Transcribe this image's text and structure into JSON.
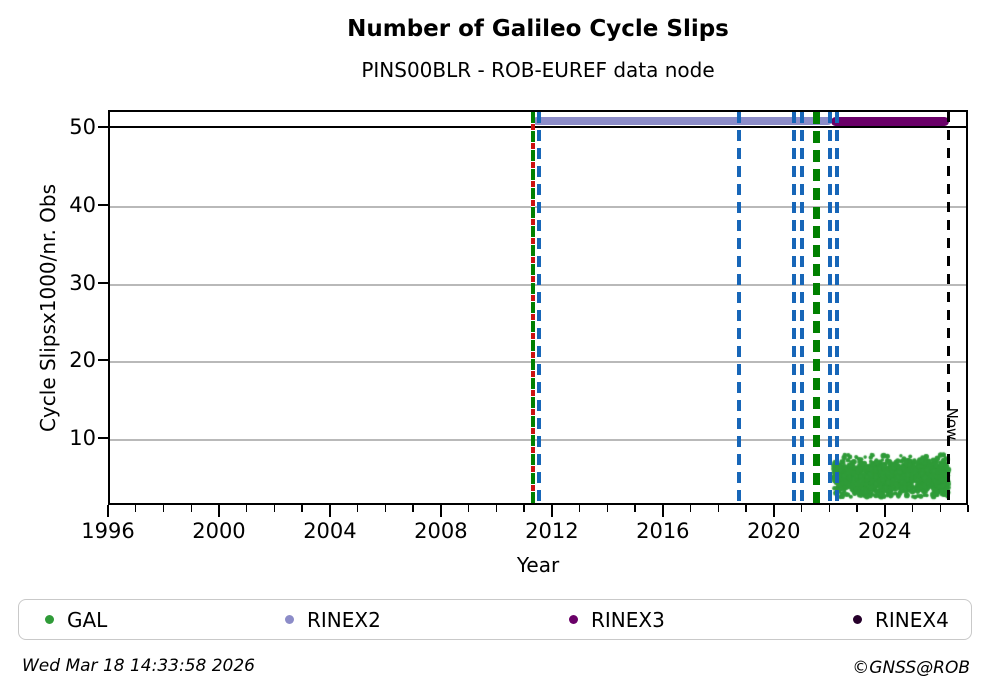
{
  "title": "Number of Galileo Cycle Slips",
  "subtitle": "PINS00BLR - ROB-EUREF data node",
  "footer": {
    "timestamp": "Wed Mar 18 14:33:58 2026",
    "credit": "©GNSS@ROB"
  },
  "axes": {
    "xlabel": "Year",
    "ylabel": "Cycle Slipsx1000/nr. Obs",
    "now_label": "Now"
  },
  "legend": {
    "items": [
      {
        "label": "GAL",
        "color": "#2f9b38"
      },
      {
        "label": "RINEX2",
        "color": "#8c8cc8"
      },
      {
        "label": "RINEX3",
        "color": "#6a0068"
      },
      {
        "label": "RINEX4",
        "color": "#26002b"
      }
    ]
  },
  "chart_data": {
    "type": "scatter",
    "title": "Number of Galileo Cycle Slips",
    "subtitle": "PINS00BLR - ROB-EUREF data node",
    "xlabel": "Year",
    "ylabel": "Cycle Slipsx1000/nr. Obs",
    "xlim": [
      1996,
      2027
    ],
    "ylim": [
      1.4,
      52.2
    ],
    "x_ticks": [
      1996,
      2000,
      2004,
      2008,
      2012,
      2016,
      2020,
      2024
    ],
    "x_minor_tick_step": 1,
    "y_ticks": [
      10,
      20,
      30,
      40,
      50
    ],
    "grid": "horizontal-gray",
    "hline": {
      "y": 50.3,
      "color": "#000000",
      "style": "solid",
      "span": "full"
    },
    "series": [
      {
        "name": "GAL",
        "type": "scatter-cluster",
        "color": "#2f9b38",
        "x_range": [
          2022.15,
          2026.3
        ],
        "y_center": 5.0,
        "y_spread": 1.1,
        "y_min": 2.4,
        "y_max": 7.9,
        "n_points": 1600,
        "description": "dense green cluster of daily values between ~2.5 and ~7.5 from 2022 until Now"
      },
      {
        "name": "RINEX2",
        "type": "hline-segment",
        "color": "#8c8cc8",
        "y": 51,
        "x_start": 2011.25,
        "x_end": 2022.02,
        "thickness_px": 8
      },
      {
        "name": "RINEX3",
        "type": "hline-segment",
        "color": "#6a0068",
        "y": 51,
        "x_start": 2022.0,
        "x_end": 2026.25,
        "thickness_px": 9
      }
    ],
    "vlines": [
      {
        "x": 2011.24,
        "style": "greenred",
        "note": "overlapping green and red dashed lines"
      },
      {
        "x": 2011.46,
        "style": "blue"
      },
      {
        "x": 2018.67,
        "style": "blue"
      },
      {
        "x": 2020.65,
        "style": "blue"
      },
      {
        "x": 2020.94,
        "style": "blue"
      },
      {
        "x": 2021.48,
        "style": "greenthick"
      },
      {
        "x": 2021.95,
        "style": "blue"
      },
      {
        "x": 2022.2,
        "style": "blue"
      },
      {
        "x": 2026.21,
        "style": "black",
        "label": "Now"
      }
    ]
  }
}
